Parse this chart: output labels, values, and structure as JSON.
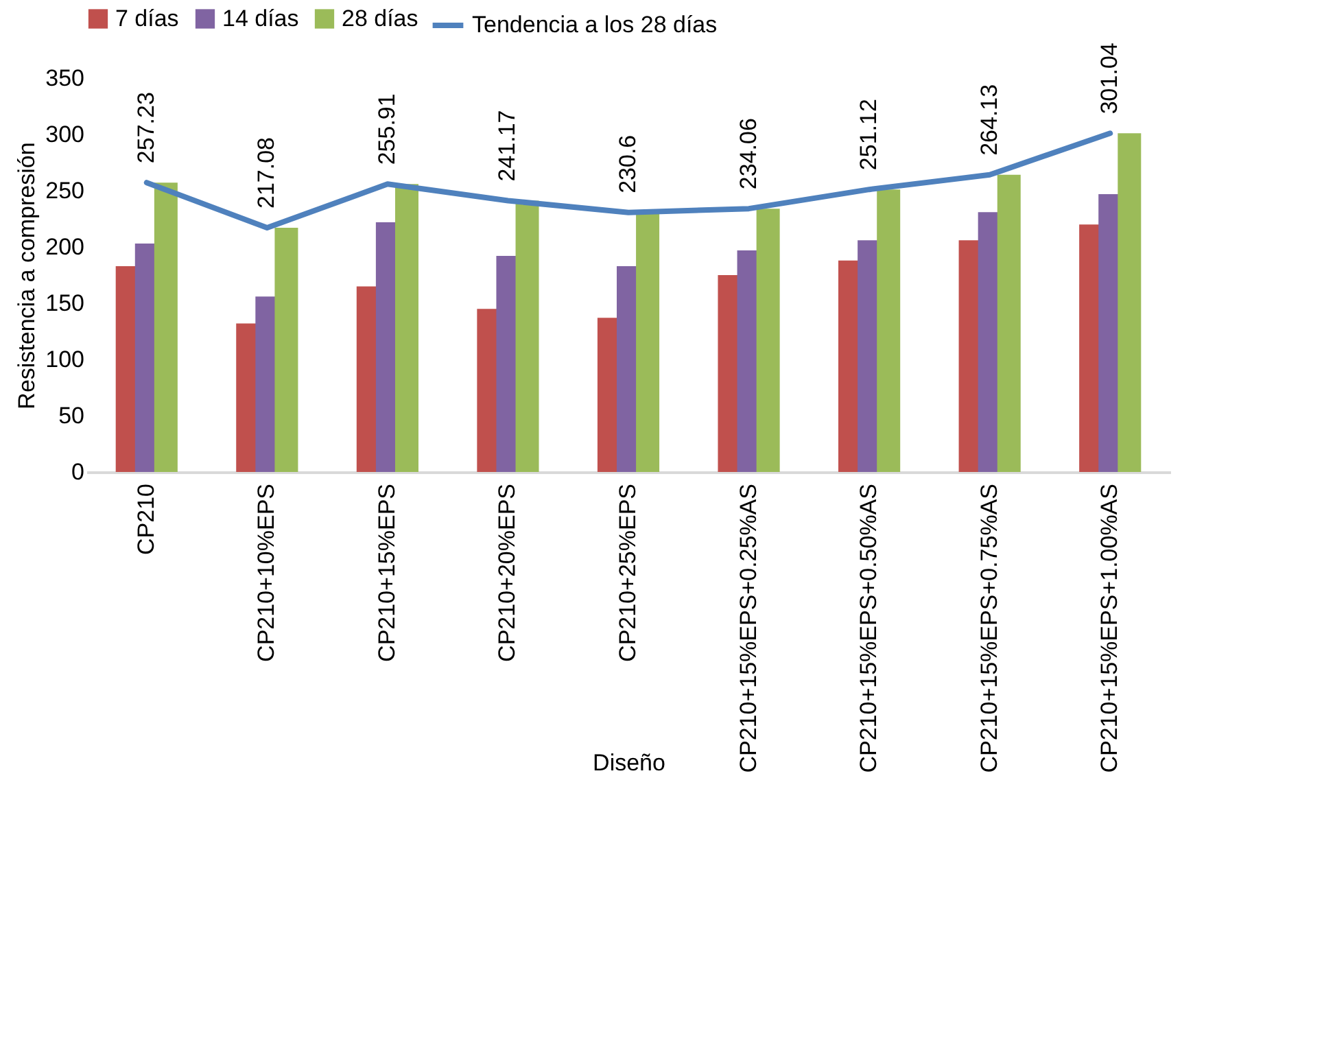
{
  "chart_data": {
    "type": "bar",
    "xlabel": "Diseño",
    "ylabel": "Resistencia a compresión",
    "categories": [
      "CP210",
      "CP210+10%EPS",
      "CP210+15%EPS",
      "CP210+20%EPS",
      "CP210+25%EPS",
      "CP210+15%EPS+0.25%AS",
      "CP210+15%EPS+0.50%AS",
      "CP210+15%EPS+0.75%AS",
      "CP210+15%EPS+1.00%AS"
    ],
    "series": [
      {
        "name": "7 días",
        "color": "#c0504d",
        "values": [
          183,
          132,
          165,
          145,
          137,
          175,
          188,
          206,
          220
        ]
      },
      {
        "name": "14 días",
        "color": "#8064a2",
        "values": [
          203,
          156,
          222,
          192,
          183,
          197,
          206,
          231,
          247
        ]
      },
      {
        "name": "28 días",
        "color": "#9bbb59",
        "values": [
          257.23,
          217.08,
          255.91,
          241.17,
          230.6,
          234.06,
          251.12,
          264.13,
          301.04
        ]
      },
      {
        "name": "Tendencia a los 28 días",
        "type": "line",
        "color": "#4f81bd",
        "values": [
          257.23,
          217.08,
          255.91,
          241.17,
          230.6,
          234.06,
          251.12,
          264.13,
          301.04
        ],
        "value_labels": [
          "257.23",
          "217.08",
          "255.91",
          "241.17",
          "230.6",
          "234.06",
          "251.12",
          "264.13",
          "301.04"
        ]
      }
    ],
    "ylim": [
      0,
      350
    ],
    "yticks": [
      0,
      50,
      100,
      150,
      200,
      250,
      300,
      350
    ],
    "grid": false,
    "legend": "top"
  }
}
